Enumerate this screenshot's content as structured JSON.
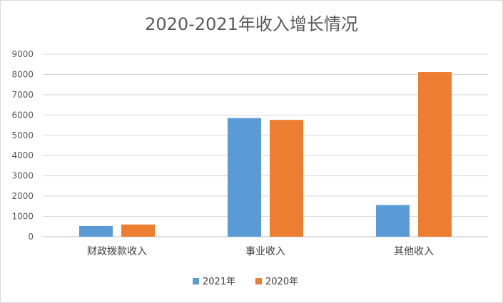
{
  "chart_data": {
    "type": "bar",
    "title": "2020-2021年收入增长情况",
    "categories": [
      "财政拨款收入",
      "事业收入",
      "其他收入"
    ],
    "series": [
      {
        "name": "2021年",
        "values": [
          530,
          5850,
          1560
        ],
        "color": "#5b9bd5"
      },
      {
        "name": "2020年",
        "values": [
          600,
          5760,
          8120
        ],
        "color": "#ed7d31"
      }
    ],
    "ylim": [
      0,
      9000
    ],
    "yticks": [
      0,
      1000,
      2000,
      3000,
      4000,
      5000,
      6000,
      7000,
      8000,
      9000
    ],
    "grid": true,
    "legend": "bottom"
  }
}
